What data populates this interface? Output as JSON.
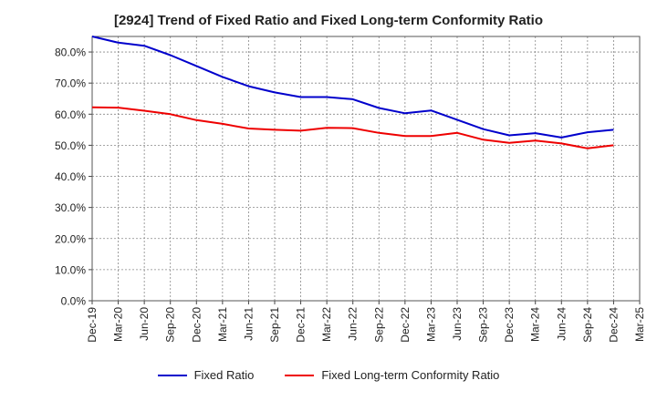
{
  "chart_data": {
    "type": "line",
    "title": "[2924]  Trend of Fixed Ratio and Fixed Long-term Conformity Ratio",
    "xlabel": "",
    "ylabel": "",
    "x": [
      "Dec-19",
      "Mar-20",
      "Jun-20",
      "Sep-20",
      "Dec-20",
      "Mar-21",
      "Jun-21",
      "Sep-21",
      "Dec-21",
      "Mar-22",
      "Jun-22",
      "Sep-22",
      "Dec-22",
      "Mar-23",
      "Jun-23",
      "Sep-23",
      "Dec-23",
      "Mar-24",
      "Jun-24",
      "Sep-24",
      "Dec-24",
      "Mar-25"
    ],
    "ylim": [
      0,
      85
    ],
    "yticks": [
      0,
      10,
      20,
      30,
      40,
      50,
      60,
      70,
      80
    ],
    "ytick_labels": [
      "0.0%",
      "10.0%",
      "20.0%",
      "30.0%",
      "40.0%",
      "50.0%",
      "60.0%",
      "70.0%",
      "80.0%"
    ],
    "grid": true,
    "legend_position": "bottom",
    "series": [
      {
        "name": "Fixed Ratio",
        "color": "#0000cc",
        "values": [
          85.0,
          83.0,
          82.0,
          79.0,
          75.5,
          72.0,
          69.0,
          67.0,
          65.5,
          65.5,
          64.8,
          62.0,
          60.3,
          61.2,
          58.2,
          55.2,
          53.2,
          53.9,
          52.5,
          54.2,
          55.0,
          null
        ]
      },
      {
        "name": "Fixed Long-term Conformity Ratio",
        "color": "#ee0000",
        "values": [
          62.2,
          62.1,
          61.1,
          60.0,
          58.1,
          56.9,
          55.4,
          55.0,
          54.7,
          55.6,
          55.5,
          54.0,
          53.0,
          53.0,
          54.0,
          51.8,
          50.8,
          51.5,
          50.6,
          49.0,
          50.0,
          null
        ]
      }
    ]
  }
}
